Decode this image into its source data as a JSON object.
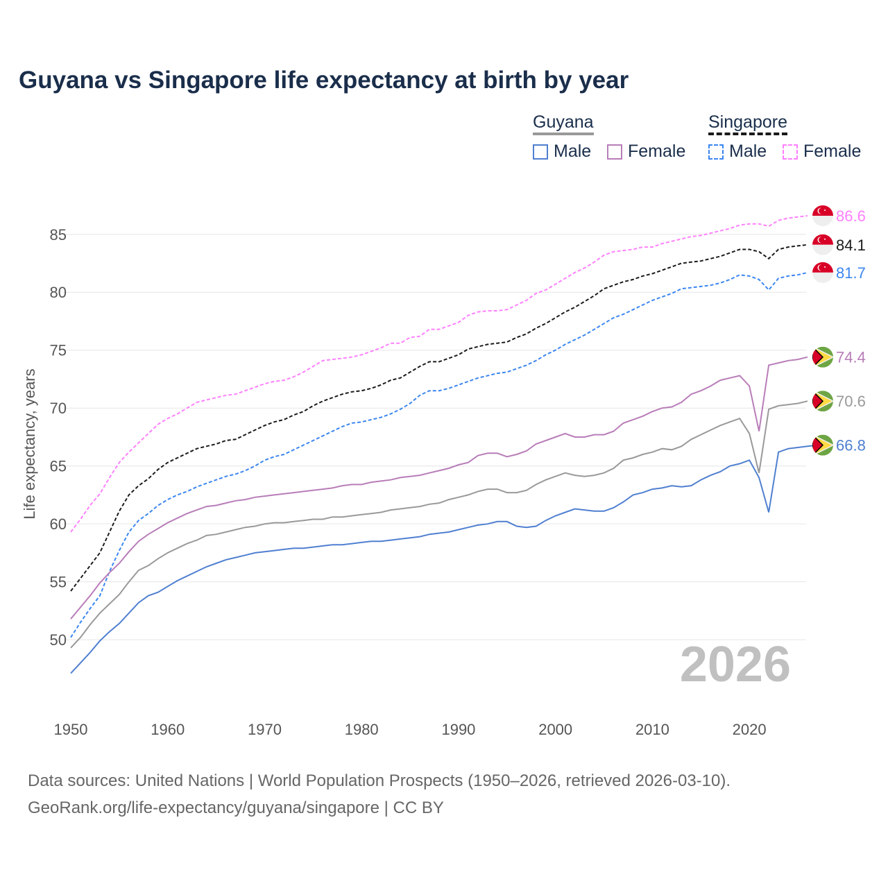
{
  "chart_data": {
    "type": "line",
    "title": "Guyana vs Singapore life expectancy at birth by year",
    "xlabel": "",
    "ylabel": "Life expectancy, years",
    "xlim": [
      1950,
      2026
    ],
    "ylim": [
      44.2,
      87.8
    ],
    "xticks": [
      "1950",
      "1960",
      "1970",
      "1980",
      "1990",
      "2000",
      "2010",
      "2020"
    ],
    "yticks": [
      "50",
      "55",
      "60",
      "65",
      "70",
      "75",
      "80",
      "85"
    ],
    "grid": true,
    "watermark_year": "2026",
    "legend": {
      "placement": "top-right",
      "groups": [
        {
          "name": "Guyana",
          "items": [
            "Male",
            "Female"
          ]
        },
        {
          "name": "Singapore",
          "items": [
            "Male",
            "Female"
          ]
        }
      ]
    },
    "x_start": 1950,
    "series": [
      {
        "name": "Singapore Female",
        "country": "singapore",
        "color": "#ff80ff",
        "dashed": true,
        "end_label": "86.6",
        "values": [
          59.3,
          60.4,
          61.6,
          62.6,
          64.0,
          65.3,
          66.2,
          67.0,
          67.8,
          68.6,
          69.1,
          69.5,
          70.0,
          70.5,
          70.7,
          70.9,
          71.1,
          71.2,
          71.5,
          71.8,
          72.1,
          72.3,
          72.4,
          72.7,
          73.1,
          73.6,
          74.1,
          74.2,
          74.3,
          74.4,
          74.6,
          74.9,
          75.2,
          75.6,
          75.6,
          76.1,
          76.2,
          76.8,
          76.8,
          77.1,
          77.4,
          78.0,
          78.3,
          78.4,
          78.4,
          78.5,
          78.9,
          79.3,
          79.9,
          80.2,
          80.7,
          81.2,
          81.7,
          82.1,
          82.6,
          83.2,
          83.5,
          83.6,
          83.7,
          83.9,
          83.9,
          84.2,
          84.4,
          84.6,
          84.8,
          84.9,
          85.1,
          85.3,
          85.5,
          85.8,
          85.9,
          85.9,
          85.7,
          86.2,
          86.4,
          86.5,
          86.6
        ]
      },
      {
        "name": "Singapore",
        "country": "singapore",
        "color": "#1a1a1a",
        "dashed": true,
        "end_label": "84.1",
        "values": [
          54.2,
          55.3,
          56.4,
          57.5,
          59.3,
          61.1,
          62.5,
          63.3,
          63.9,
          64.7,
          65.3,
          65.7,
          66.1,
          66.5,
          66.7,
          66.9,
          67.2,
          67.3,
          67.7,
          68.1,
          68.5,
          68.8,
          69.0,
          69.4,
          69.7,
          70.2,
          70.6,
          70.9,
          71.2,
          71.4,
          71.5,
          71.7,
          72.0,
          72.4,
          72.6,
          73.1,
          73.6,
          74.0,
          74.0,
          74.3,
          74.6,
          75.1,
          75.3,
          75.5,
          75.6,
          75.7,
          76.1,
          76.4,
          76.9,
          77.3,
          77.8,
          78.3,
          78.7,
          79.2,
          79.7,
          80.3,
          80.6,
          80.9,
          81.1,
          81.4,
          81.6,
          81.9,
          82.2,
          82.5,
          82.6,
          82.7,
          82.9,
          83.1,
          83.4,
          83.7,
          83.7,
          83.5,
          82.9,
          83.7,
          83.9,
          84.0,
          84.1
        ]
      },
      {
        "name": "Singapore Male",
        "country": "singapore",
        "color": "#3b86f0",
        "dashed": true,
        "end_label": "81.7",
        "values": [
          50.2,
          51.5,
          52.7,
          53.8,
          55.9,
          57.7,
          59.3,
          60.3,
          60.9,
          61.6,
          62.1,
          62.5,
          62.8,
          63.2,
          63.5,
          63.8,
          64.1,
          64.3,
          64.6,
          65.0,
          65.5,
          65.8,
          66.0,
          66.4,
          66.8,
          67.2,
          67.6,
          68.0,
          68.4,
          68.7,
          68.8,
          69.0,
          69.2,
          69.5,
          69.9,
          70.4,
          71.1,
          71.5,
          71.5,
          71.7,
          72.0,
          72.3,
          72.6,
          72.8,
          73.0,
          73.1,
          73.4,
          73.7,
          74.1,
          74.6,
          75.0,
          75.5,
          75.9,
          76.3,
          76.8,
          77.3,
          77.8,
          78.1,
          78.5,
          78.9,
          79.3,
          79.6,
          79.9,
          80.3,
          80.4,
          80.5,
          80.6,
          80.8,
          81.1,
          81.5,
          81.4,
          81.1,
          80.2,
          81.2,
          81.4,
          81.5,
          81.7
        ]
      },
      {
        "name": "Guyana Female",
        "country": "guyana",
        "color": "#b87db8",
        "dashed": false,
        "end_label": "74.4",
        "values": [
          51.8,
          52.8,
          53.8,
          54.9,
          55.8,
          56.6,
          57.6,
          58.5,
          59.1,
          59.6,
          60.1,
          60.5,
          60.9,
          61.2,
          61.5,
          61.6,
          61.8,
          62.0,
          62.1,
          62.3,
          62.4,
          62.5,
          62.6,
          62.7,
          62.8,
          62.9,
          63.0,
          63.1,
          63.3,
          63.4,
          63.4,
          63.6,
          63.7,
          63.8,
          64.0,
          64.1,
          64.2,
          64.4,
          64.6,
          64.8,
          65.1,
          65.3,
          65.9,
          66.1,
          66.1,
          65.8,
          66.0,
          66.3,
          66.9,
          67.2,
          67.5,
          67.8,
          67.5,
          67.5,
          67.7,
          67.7,
          68.0,
          68.7,
          69.0,
          69.3,
          69.7,
          70.0,
          70.1,
          70.5,
          71.2,
          71.5,
          71.9,
          72.4,
          72.6,
          72.8,
          71.9,
          68.0,
          73.7,
          73.9,
          74.1,
          74.2,
          74.4
        ]
      },
      {
        "name": "Guyana",
        "country": "guyana",
        "color": "#999999",
        "dashed": false,
        "end_label": "70.6",
        "values": [
          49.3,
          50.2,
          51.3,
          52.3,
          53.1,
          53.9,
          55.0,
          56.0,
          56.4,
          57.0,
          57.5,
          57.9,
          58.3,
          58.6,
          59.0,
          59.1,
          59.3,
          59.5,
          59.7,
          59.8,
          60.0,
          60.1,
          60.1,
          60.2,
          60.3,
          60.4,
          60.4,
          60.6,
          60.6,
          60.7,
          60.8,
          60.9,
          61.0,
          61.2,
          61.3,
          61.4,
          61.5,
          61.7,
          61.8,
          62.1,
          62.3,
          62.5,
          62.8,
          63.0,
          63.0,
          62.7,
          62.7,
          62.9,
          63.4,
          63.8,
          64.1,
          64.4,
          64.2,
          64.1,
          64.2,
          64.4,
          64.8,
          65.5,
          65.7,
          66.0,
          66.2,
          66.5,
          66.4,
          66.7,
          67.3,
          67.7,
          68.1,
          68.5,
          68.8,
          69.1,
          67.8,
          64.4,
          69.9,
          70.2,
          70.3,
          70.4,
          70.6
        ]
      },
      {
        "name": "Guyana Male",
        "country": "guyana",
        "color": "#4f7fd0",
        "dashed": false,
        "end_label": "66.8",
        "values": [
          47.1,
          48.0,
          48.9,
          49.9,
          50.7,
          51.4,
          52.3,
          53.2,
          53.8,
          54.1,
          54.6,
          55.1,
          55.5,
          55.9,
          56.3,
          56.6,
          56.9,
          57.1,
          57.3,
          57.5,
          57.6,
          57.7,
          57.8,
          57.9,
          57.9,
          58.0,
          58.1,
          58.2,
          58.2,
          58.3,
          58.4,
          58.5,
          58.5,
          58.6,
          58.7,
          58.8,
          58.9,
          59.1,
          59.2,
          59.3,
          59.5,
          59.7,
          59.9,
          60.0,
          60.2,
          60.2,
          59.8,
          59.7,
          59.8,
          60.3,
          60.7,
          61.0,
          61.3,
          61.2,
          61.1,
          61.1,
          61.4,
          61.9,
          62.5,
          62.7,
          63.0,
          63.1,
          63.3,
          63.2,
          63.3,
          63.8,
          64.2,
          64.5,
          65.0,
          65.2,
          65.5,
          64.0,
          61.0,
          66.2,
          66.5,
          66.6,
          66.7,
          66.8
        ]
      }
    ]
  },
  "legend_labels": {
    "guyana": "Guyana",
    "singapore": "Singapore",
    "male": "Male",
    "female": "Female"
  },
  "footer": {
    "line1": "Data sources: United Nations | World Population Prospects (1950–2026, retrieved 2026-03-10).",
    "line2": "GeoRank.org/life-expectancy/guyana/singapore | CC BY"
  }
}
